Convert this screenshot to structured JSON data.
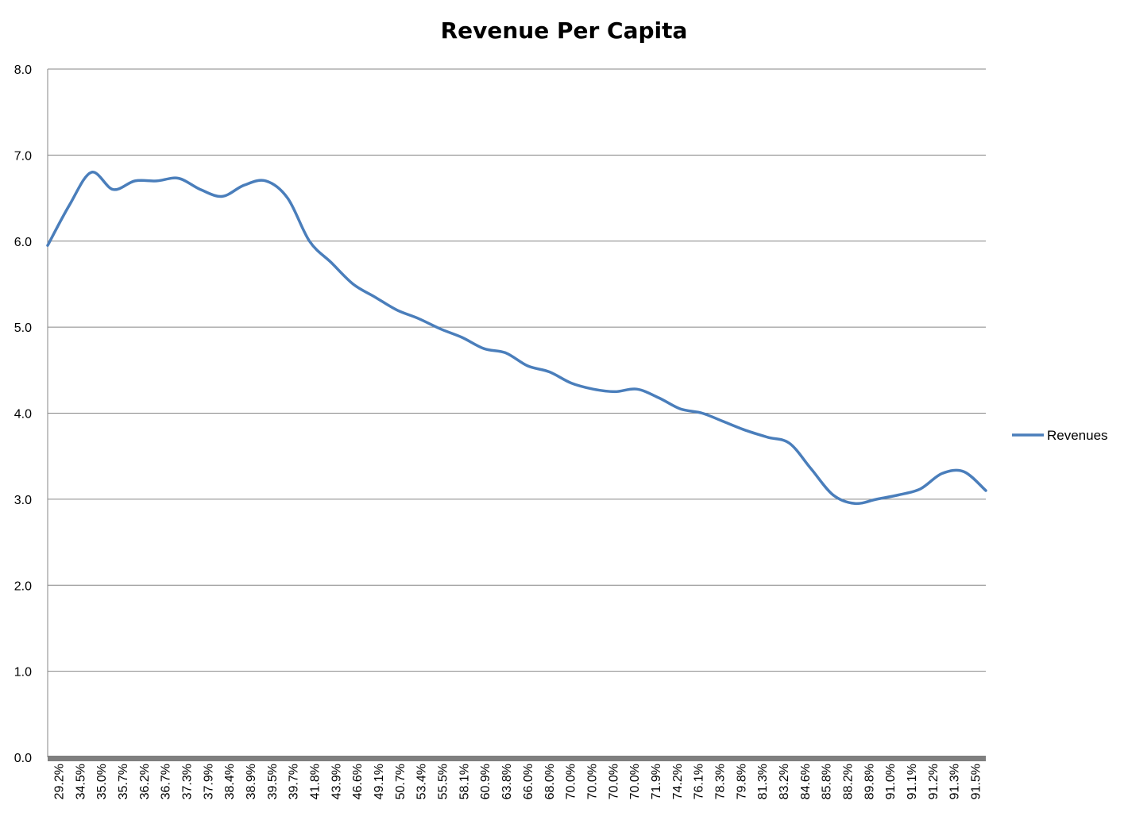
{
  "chart_data": {
    "type": "line",
    "title": "Revenue Per Capita",
    "xlabel": "",
    "ylabel": "",
    "ylim": [
      0,
      8
    ],
    "y_ticks": [
      "0.0",
      "1.0",
      "2.0",
      "3.0",
      "4.0",
      "5.0",
      "6.0",
      "7.0",
      "8.0"
    ],
    "grid": "horizontal",
    "legend_position": "right",
    "categories": [
      "29.2%",
      "34.5%",
      "35.0%",
      "35.7%",
      "36.2%",
      "36.7%",
      "37.3%",
      "37.9%",
      "38.4%",
      "38.9%",
      "39.5%",
      "39.7%",
      "41.8%",
      "43.9%",
      "46.6%",
      "49.1%",
      "50.7%",
      "53.4%",
      "55.5%",
      "58.1%",
      "60.9%",
      "63.8%",
      "66.0%",
      "68.0%",
      "70.0%",
      "70.0%",
      "70.0%",
      "70.0%",
      "71.9%",
      "74.2%",
      "76.1%",
      "78.3%",
      "79.8%",
      "81.3%",
      "83.2%",
      "84.6%",
      "85.8%",
      "88.2%",
      "89.8%",
      "91.0%",
      "91.1%",
      "91.2%",
      "91.3%",
      "91.5%"
    ],
    "series": [
      {
        "name": "Revenues",
        "color": "#4a7ebb",
        "values": [
          5.95,
          6.42,
          6.8,
          6.6,
          6.7,
          6.7,
          6.73,
          6.6,
          6.52,
          6.65,
          6.7,
          6.5,
          6.0,
          5.75,
          5.5,
          5.35,
          5.2,
          5.1,
          4.98,
          4.88,
          4.75,
          4.7,
          4.55,
          4.48,
          4.35,
          4.28,
          4.25,
          4.28,
          4.18,
          4.05,
          4.0,
          3.9,
          3.8,
          3.72,
          3.65,
          3.35,
          3.05,
          2.95,
          3.0,
          3.05,
          3.12,
          3.3,
          3.32,
          3.1
        ]
      }
    ]
  }
}
